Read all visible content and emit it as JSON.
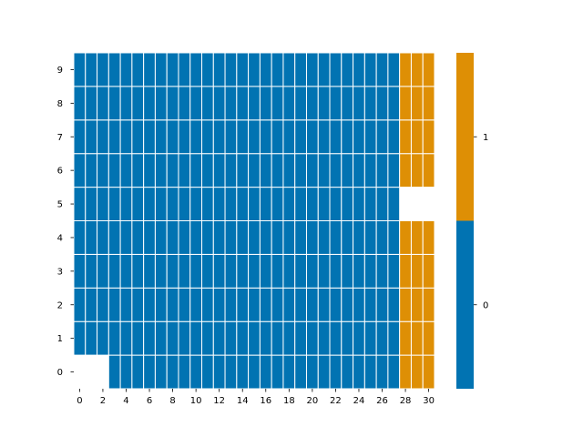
{
  "chart_data": {
    "type": "heatmap",
    "title": "",
    "xlabel": "",
    "ylabel": "",
    "x_tick_labels": [
      "0",
      "2",
      "4",
      "6",
      "8",
      "10",
      "12",
      "14",
      "16",
      "18",
      "20",
      "22",
      "24",
      "26",
      "28",
      "30"
    ],
    "y_tick_labels": [
      "0",
      "1",
      "2",
      "3",
      "4",
      "5",
      "6",
      "7",
      "8",
      "9"
    ],
    "colorbar_ticks": [
      "0",
      "1"
    ],
    "colors": {
      "0": "#0173b2",
      "1": "#de8f05",
      "missing": "#ffffff",
      "gridline": "#ffffff"
    },
    "columns": 31,
    "rows": 10,
    "values": [
      [
        null,
        null,
        null,
        0,
        0,
        0,
        0,
        0,
        0,
        0,
        0,
        0,
        0,
        0,
        0,
        0,
        0,
        0,
        0,
        0,
        0,
        0,
        0,
        0,
        0,
        0,
        0,
        0,
        1,
        1,
        1
      ],
      [
        0,
        0,
        0,
        0,
        0,
        0,
        0,
        0,
        0,
        0,
        0,
        0,
        0,
        0,
        0,
        0,
        0,
        0,
        0,
        0,
        0,
        0,
        0,
        0,
        0,
        0,
        0,
        0,
        1,
        1,
        1
      ],
      [
        0,
        0,
        0,
        0,
        0,
        0,
        0,
        0,
        0,
        0,
        0,
        0,
        0,
        0,
        0,
        0,
        0,
        0,
        0,
        0,
        0,
        0,
        0,
        0,
        0,
        0,
        0,
        0,
        1,
        1,
        1
      ],
      [
        0,
        0,
        0,
        0,
        0,
        0,
        0,
        0,
        0,
        0,
        0,
        0,
        0,
        0,
        0,
        0,
        0,
        0,
        0,
        0,
        0,
        0,
        0,
        0,
        0,
        0,
        0,
        0,
        1,
        1,
        1
      ],
      [
        0,
        0,
        0,
        0,
        0,
        0,
        0,
        0,
        0,
        0,
        0,
        0,
        0,
        0,
        0,
        0,
        0,
        0,
        0,
        0,
        0,
        0,
        0,
        0,
        0,
        0,
        0,
        0,
        1,
        1,
        1
      ],
      [
        0,
        0,
        0,
        0,
        0,
        0,
        0,
        0,
        0,
        0,
        0,
        0,
        0,
        0,
        0,
        0,
        0,
        0,
        0,
        0,
        0,
        0,
        0,
        0,
        0,
        0,
        0,
        0,
        null,
        null,
        null
      ],
      [
        0,
        0,
        0,
        0,
        0,
        0,
        0,
        0,
        0,
        0,
        0,
        0,
        0,
        0,
        0,
        0,
        0,
        0,
        0,
        0,
        0,
        0,
        0,
        0,
        0,
        0,
        0,
        0,
        1,
        1,
        1
      ],
      [
        0,
        0,
        0,
        0,
        0,
        0,
        0,
        0,
        0,
        0,
        0,
        0,
        0,
        0,
        0,
        0,
        0,
        0,
        0,
        0,
        0,
        0,
        0,
        0,
        0,
        0,
        0,
        0,
        1,
        1,
        1
      ],
      [
        0,
        0,
        0,
        0,
        0,
        0,
        0,
        0,
        0,
        0,
        0,
        0,
        0,
        0,
        0,
        0,
        0,
        0,
        0,
        0,
        0,
        0,
        0,
        0,
        0,
        0,
        0,
        0,
        1,
        1,
        1
      ],
      [
        0,
        0,
        0,
        0,
        0,
        0,
        0,
        0,
        0,
        0,
        0,
        0,
        0,
        0,
        0,
        0,
        0,
        0,
        0,
        0,
        0,
        0,
        0,
        0,
        0,
        0,
        0,
        0,
        1,
        1,
        1
      ]
    ]
  }
}
